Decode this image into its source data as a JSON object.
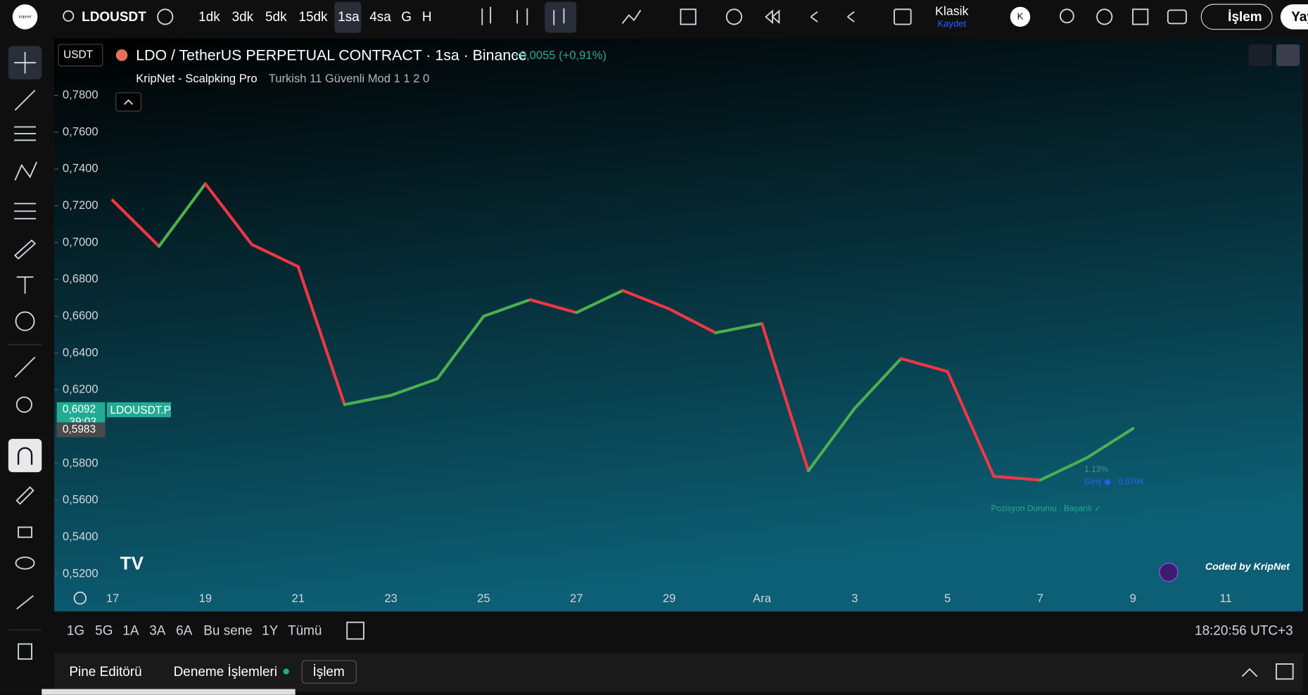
{
  "toolbar": {
    "logo": "kripnet",
    "symbol": "LDOUSDT",
    "intervals": [
      "1dk",
      "3dk",
      "5dk",
      "15dk",
      "1sa",
      "4sa",
      "G",
      "H"
    ],
    "layout_name": "Klasik",
    "save": "Kaydet",
    "avatar": "K",
    "trade": "İşlem",
    "publish": "Yay"
  },
  "chart_data": {
    "type": "line",
    "currency": "USDT",
    "title": "LDO / TetherUS PERPETUAL CONTRACT · 1sa · Binance",
    "change": "+0,0055 (+0,91%)",
    "indicator_params": "Turkish 11 Güvenli Mod 1 1 2 0",
    "categories": [
      "17",
      null,
      "19",
      null,
      "21",
      null,
      "23",
      null,
      "25",
      null,
      "27",
      null,
      "29",
      null,
      "Ara",
      null,
      "3",
      null,
      "5",
      null,
      "7",
      null,
      "9",
      null,
      "11"
    ],
    "series": [
      {
        "name": "KripNet - Scalpking Pro",
        "up_color": "#4caf50",
        "down_color": "#f23645",
        "values": [
          0.723,
          0.698,
          0.732,
          0.699,
          0.687,
          0.612,
          0.617,
          0.626,
          0.66,
          0.669,
          0.662,
          0.674,
          0.664,
          0.651,
          0.656,
          0.576,
          0.61,
          0.637,
          0.63,
          0.573,
          0.571,
          0.583,
          0.599,
          null,
          null
        ]
      }
    ],
    "ylim": [
      0.5123,
      0.81
    ],
    "yticks": [
      {
        "value": 0.52,
        "label": "0,5200"
      },
      {
        "value": 0.54,
        "label": "0,5400"
      },
      {
        "value": 0.56,
        "label": "0,5600"
      },
      {
        "value": 0.58,
        "label": "0,5800"
      },
      {
        "value": 0.62,
        "label": "0,6200"
      },
      {
        "value": 0.64,
        "label": "0,6400"
      },
      {
        "value": 0.66,
        "label": "0,6600"
      },
      {
        "value": 0.68,
        "label": "0,6800"
      },
      {
        "value": 0.7,
        "label": "0,7000"
      },
      {
        "value": 0.72,
        "label": "0,7200"
      },
      {
        "value": 0.74,
        "label": "0,7400"
      },
      {
        "value": 0.76,
        "label": "0,7600"
      },
      {
        "value": 0.78,
        "label": "0,7800"
      }
    ],
    "price_labels": [
      {
        "value": 0.6092,
        "label": "0,6092",
        "countdown": "39:03",
        "symbol": "LDOUSDT.P"
      },
      {
        "value": 0.5983,
        "label": "0,5983"
      }
    ],
    "annotations": [
      "1.13%",
      "Giriş ◉ : 0.5704",
      "Pozisyon Durumu : Başarılı ✓",
      "Coded by KripNet"
    ]
  },
  "range_bar": {
    "ranges": [
      "1G",
      "5G",
      "1A",
      "3A",
      "6A",
      "Bu sene",
      "1Y",
      "Tümü"
    ],
    "clock": "18:20:56 UTC+3"
  },
  "bottom_tabs": [
    "Pine Editörü",
    "Deneme İşlemleri",
    "İşlem"
  ]
}
